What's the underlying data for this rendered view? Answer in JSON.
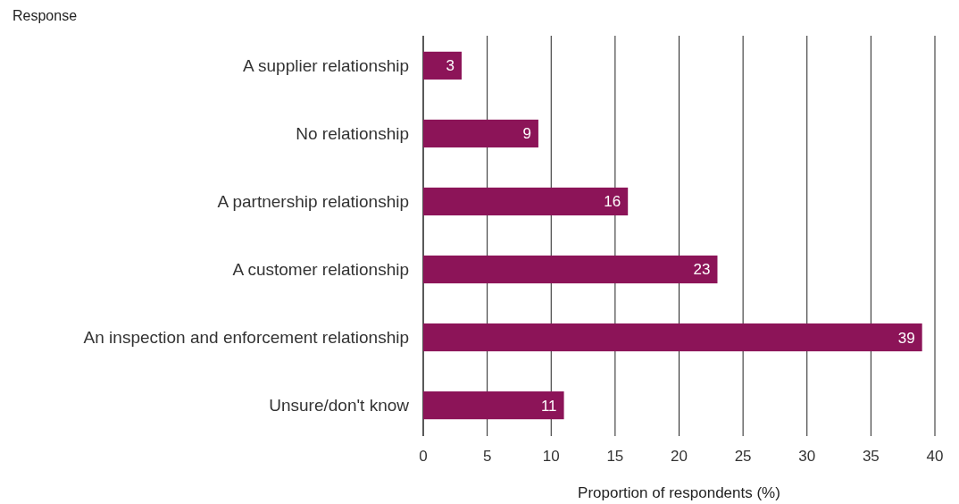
{
  "chart_data": {
    "type": "bar",
    "orientation": "horizontal",
    "ylabel": "Response",
    "xlabel": "Proportion of respondents (%)",
    "categories": [
      "A supplier relationship",
      "No relationship",
      "A partnership relationship",
      "A customer relationship",
      "An inspection and enforcement relationship",
      "Unsure/don't know"
    ],
    "values": [
      3,
      9,
      16,
      23,
      39,
      11
    ],
    "color": "#8c1458",
    "data_labels": true,
    "grid": "x",
    "xlim": [
      0,
      40
    ],
    "xticks": [
      0,
      5,
      10,
      15,
      20,
      25,
      30,
      35,
      40
    ]
  }
}
